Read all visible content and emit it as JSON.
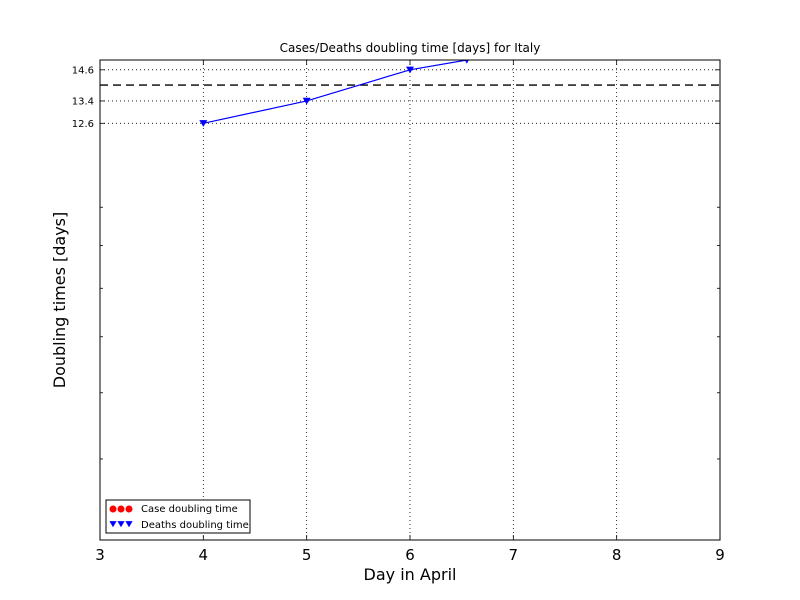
{
  "chart_data": {
    "type": "line",
    "title": "Cases/Deaths doubling time [days] for Italy",
    "xlabel": "Day in April",
    "ylabel": "Doubling times [days]",
    "xlim": [
      3,
      9
    ],
    "ylog": true,
    "ylim": [
      4.0,
      15.0
    ],
    "xticks": [
      3,
      4,
      5,
      6,
      7,
      8,
      9
    ],
    "yticks": [
      12.6,
      13.4,
      14.6
    ],
    "reference_line": {
      "y": 14.0,
      "style": "dashed",
      "color": "#000000"
    },
    "grid": true,
    "series": [
      {
        "name": "Case doubling time",
        "marker": "circle",
        "color": "#ff0000",
        "x": [],
        "y": []
      },
      {
        "name": "Deaths doubling time",
        "marker": "triangle-down",
        "color": "#0000ff",
        "x": [
          4,
          5,
          6,
          6.55
        ],
        "y": [
          12.6,
          13.4,
          14.6,
          15.0
        ]
      }
    ],
    "legend": "lower-left"
  }
}
